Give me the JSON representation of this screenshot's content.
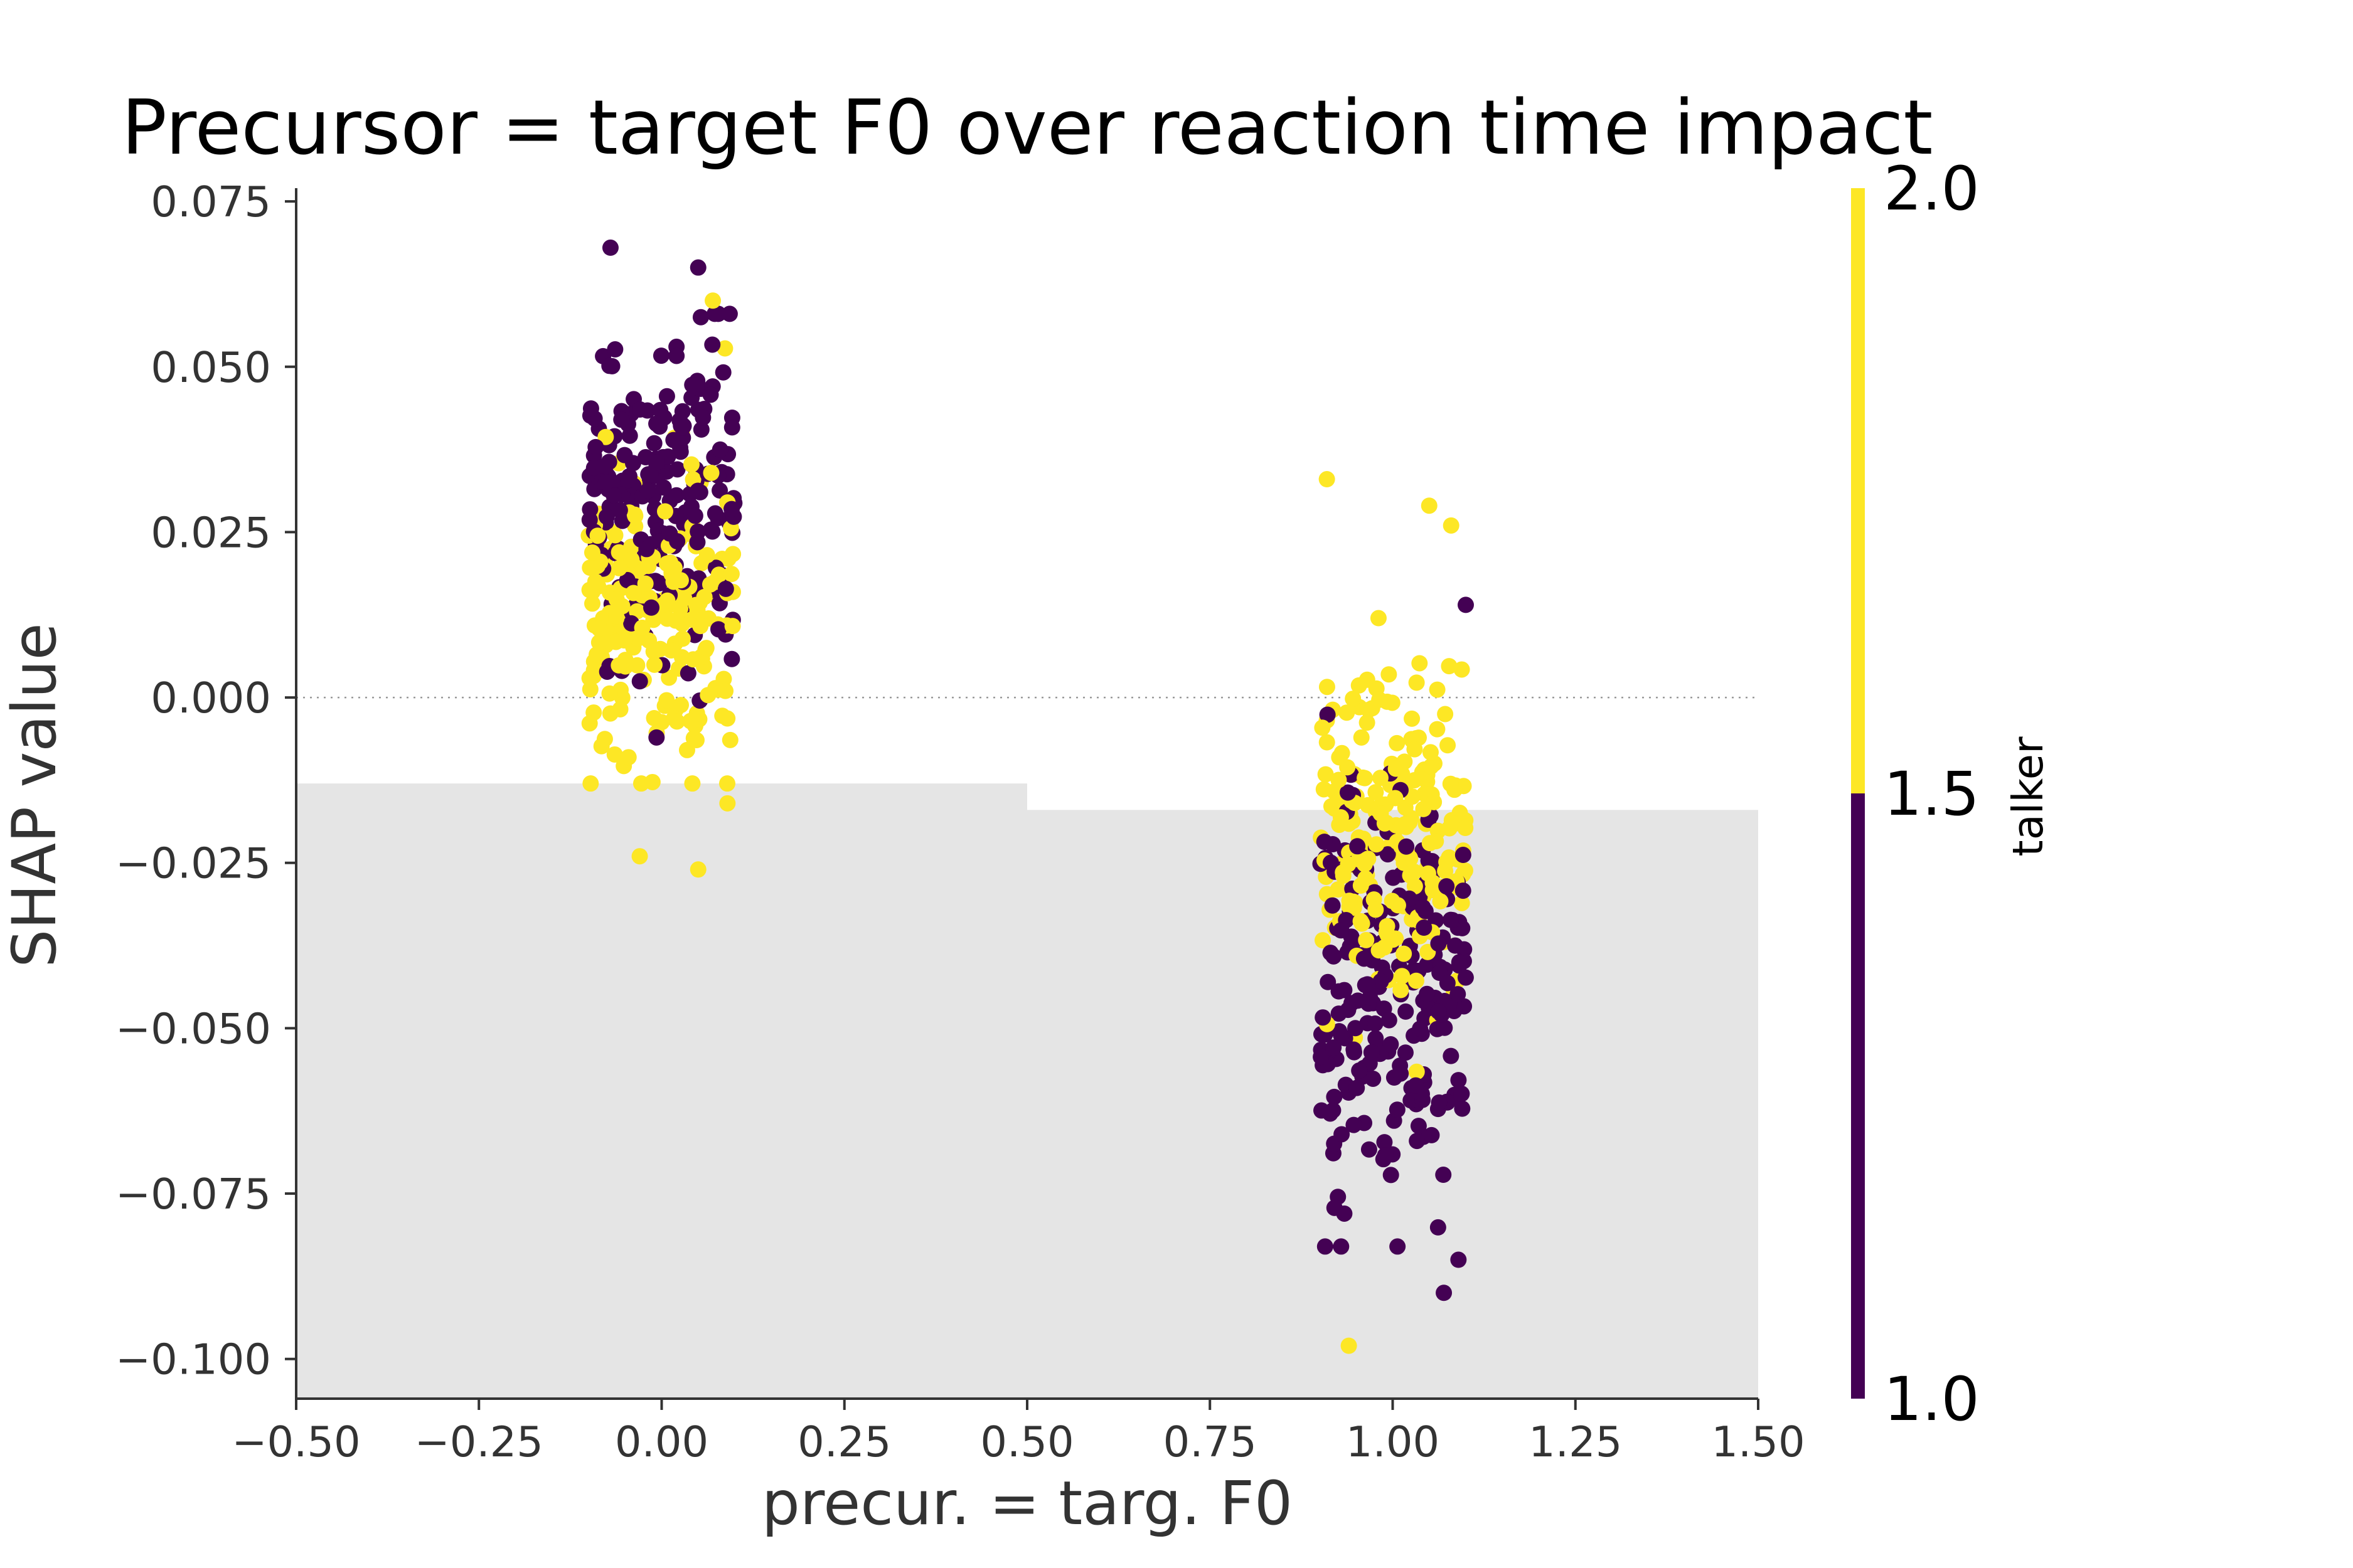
{
  "chart_data": {
    "type": "scatter",
    "title": "Precursor = target F0 over reaction time impact",
    "xlabel": "precur. = targ. F0",
    "ylabel": "SHAP value",
    "xlim": [
      -0.5,
      1.5
    ],
    "ylim": [
      -0.106,
      0.077
    ],
    "x_ticks": [
      -0.5,
      -0.25,
      0.0,
      0.25,
      0.5,
      0.75,
      1.0,
      1.25,
      1.5
    ],
    "x_tick_labels": [
      "−0.50",
      "−0.25",
      "0.00",
      "0.25",
      "0.50",
      "0.75",
      "1.00",
      "1.25",
      "1.50"
    ],
    "y_ticks": [
      0.075,
      0.05,
      0.025,
      0.0,
      -0.025,
      -0.05,
      -0.075,
      -0.1
    ],
    "y_tick_labels": [
      "0.075",
      "0.050",
      "0.025",
      "0.000",
      "−0.025",
      "−0.050",
      "−0.075",
      "−0.100"
    ],
    "zero_line": true,
    "grid": false,
    "background_histogram": [
      {
        "x_range": [
          -0.5,
          0.5
        ],
        "height_top": -0.013
      },
      {
        "x_range": [
          0.5,
          1.5
        ],
        "height_top": -0.017
      }
    ],
    "color_by": {
      "label": "talker",
      "range": [
        1.0,
        2.0
      ],
      "ticks": [
        "1.0",
        "1.5",
        "2.0"
      ],
      "colors": {
        "low": "#440154",
        "high": "#fde725"
      }
    },
    "groups": [
      {
        "x_center": 0.0,
        "x_jitter": 0.1,
        "y_range": [
          -0.026,
          0.068
        ],
        "talker1_mean": 0.03,
        "talker2_mean": 0.012
      },
      {
        "x_center": 1.0,
        "x_jitter": 0.1,
        "y_range": [
          -0.098,
          0.033
        ],
        "talker1_mean": -0.045,
        "talker2_mean": -0.02
      }
    ],
    "notable_points": [
      {
        "x": -0.07,
        "y": 0.068,
        "talker": 1
      },
      {
        "x": 0.05,
        "y": 0.065,
        "talker": 1
      },
      {
        "x": 0.07,
        "y": 0.06,
        "talker": 2
      },
      {
        "x": -0.03,
        "y": -0.024,
        "talker": 2
      },
      {
        "x": 0.05,
        "y": -0.026,
        "talker": 2
      },
      {
        "x": 0.09,
        "y": -0.016,
        "talker": 2
      },
      {
        "x": 0.91,
        "y": 0.033,
        "talker": 2
      },
      {
        "x": 1.08,
        "y": 0.026,
        "talker": 2
      },
      {
        "x": 1.05,
        "y": 0.029,
        "talker": 2
      },
      {
        "x": 0.94,
        "y": -0.098,
        "talker": 2
      },
      {
        "x": 1.07,
        "y": -0.09,
        "talker": 1
      },
      {
        "x": 1.09,
        "y": -0.085,
        "talker": 1
      },
      {
        "x": 1.1,
        "y": 0.014,
        "talker": 1
      }
    ]
  }
}
